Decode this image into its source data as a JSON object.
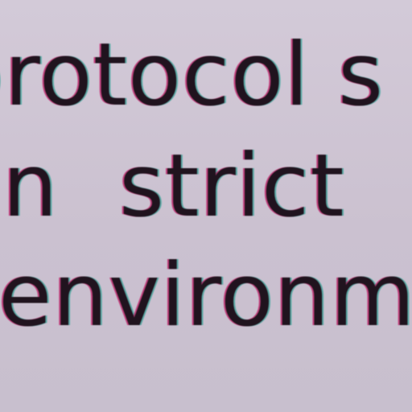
{
  "lines": [
    "protocol s",
    "on strict",
    "environm"
  ]
}
